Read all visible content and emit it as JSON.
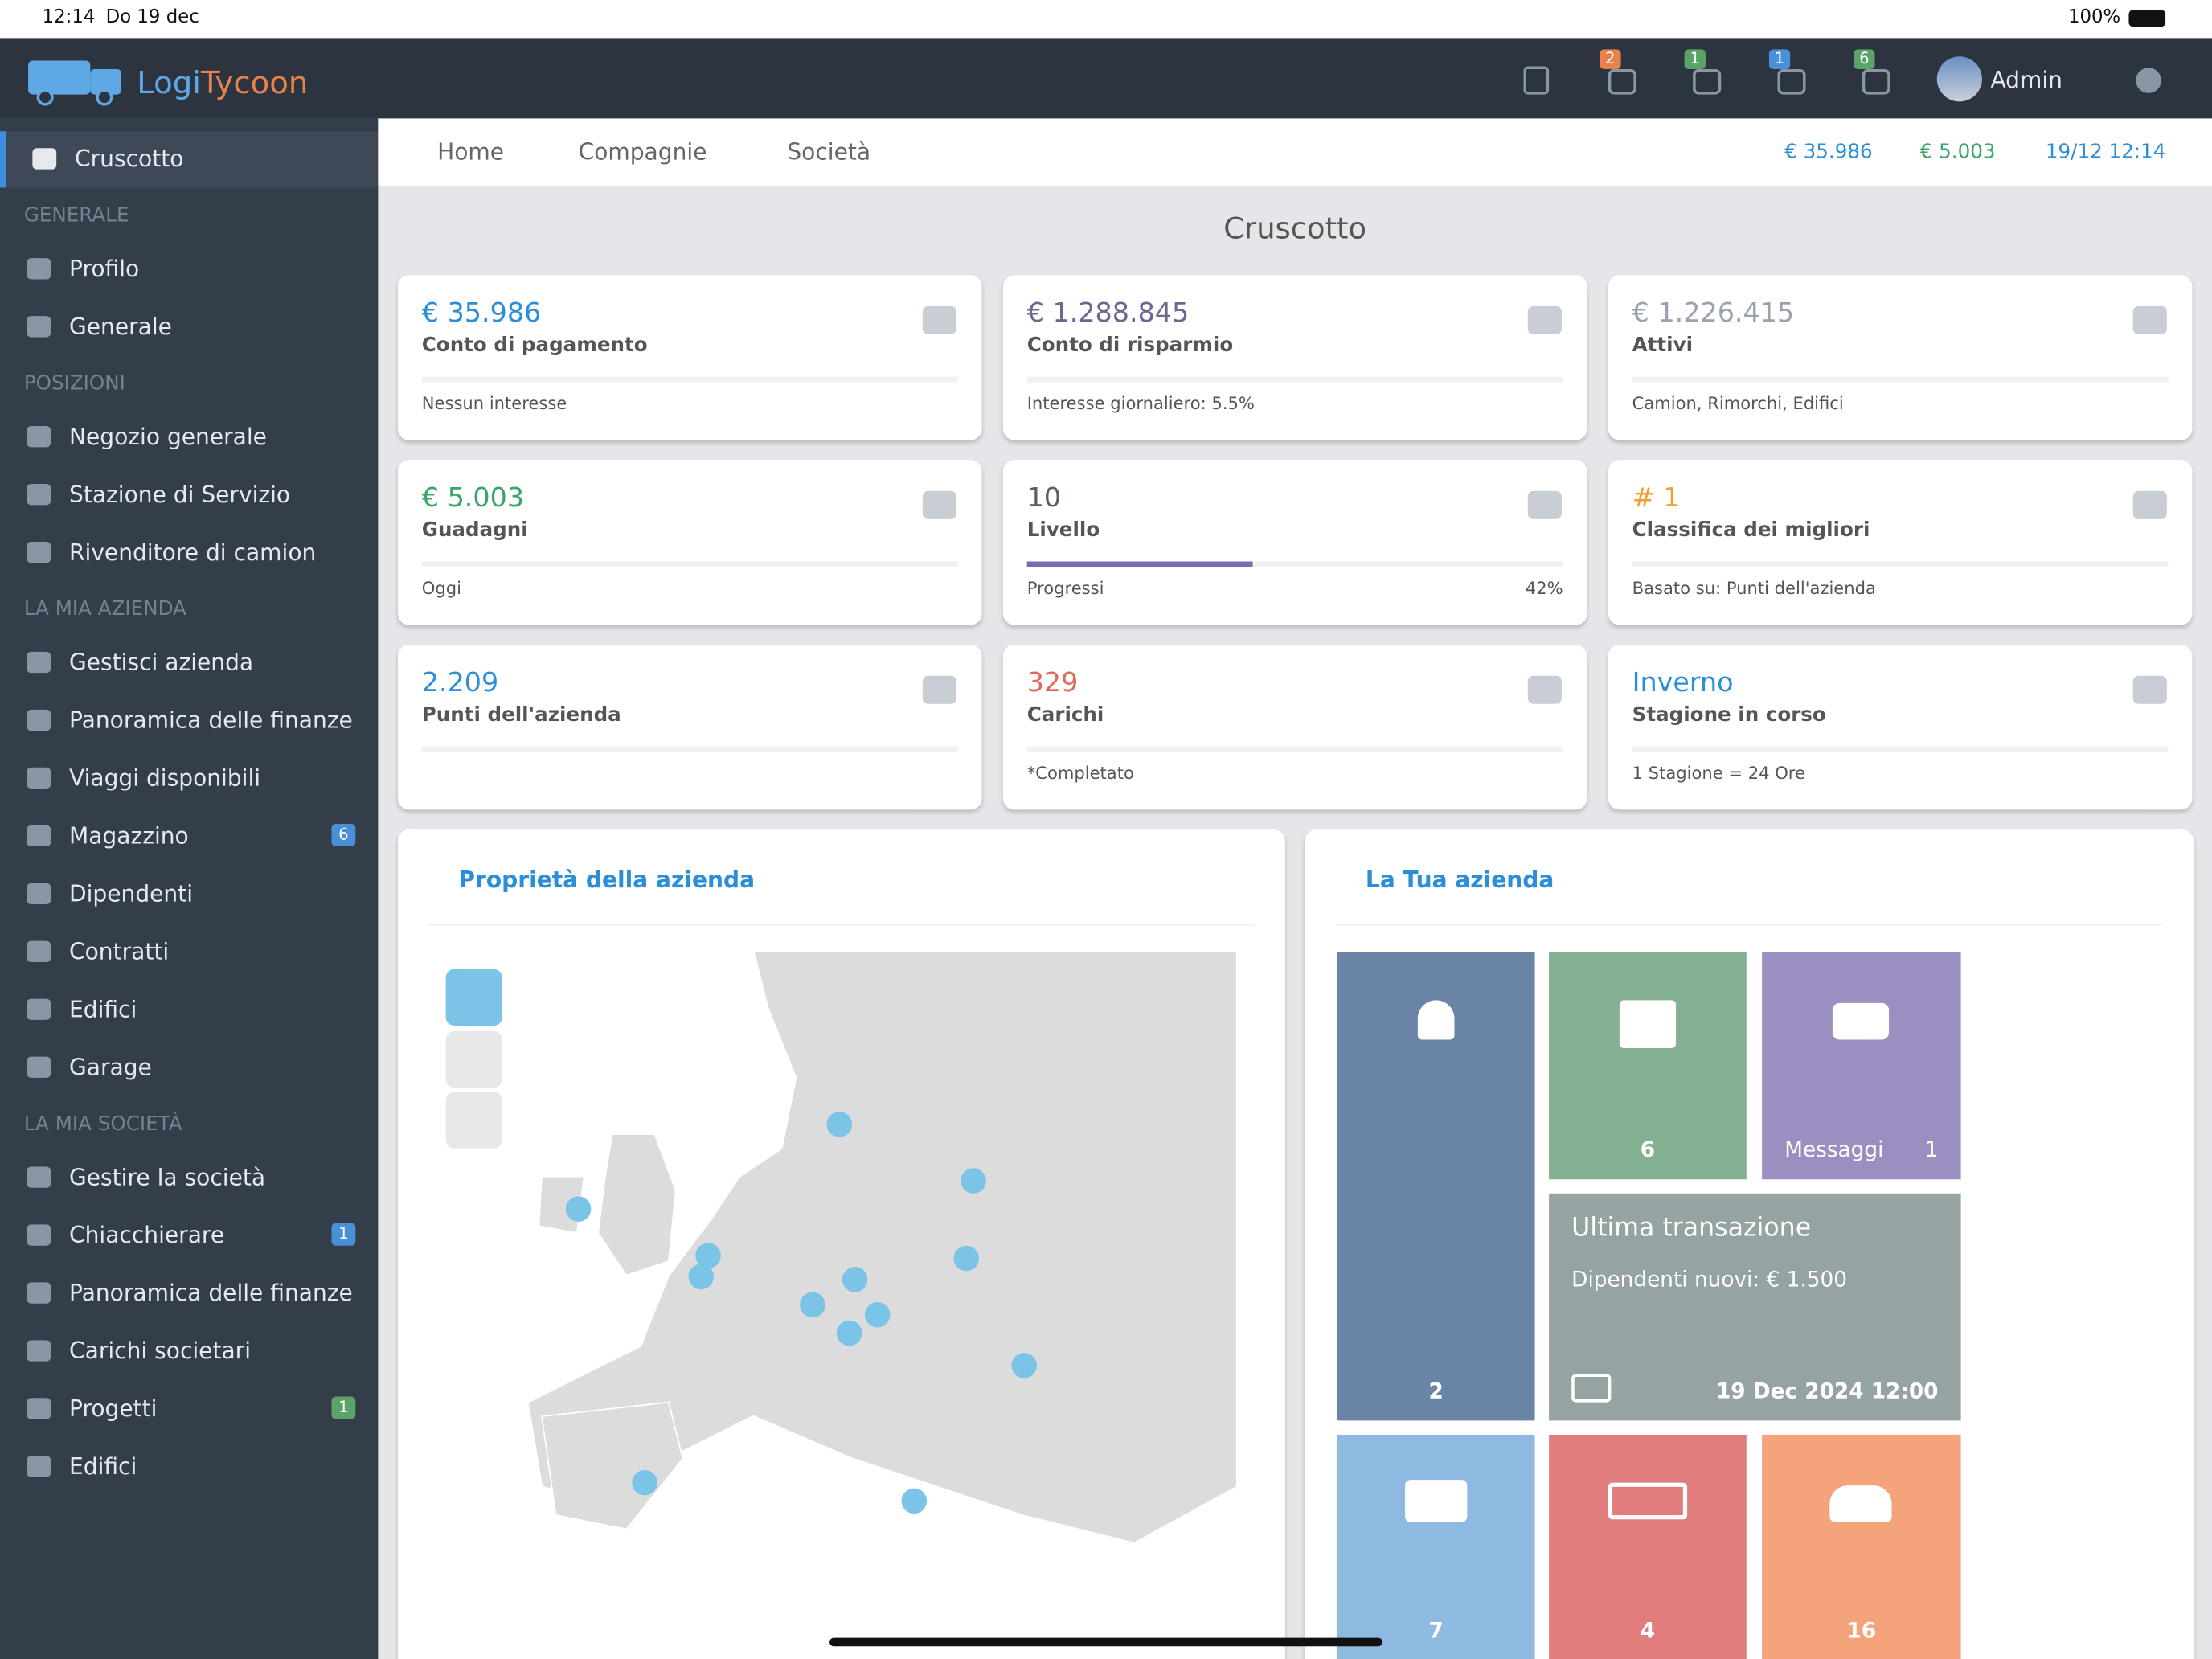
{
  "status_bar": {
    "time": "12:14",
    "date": "Do 19 dec",
    "battery": "100%"
  },
  "header": {
    "logo_a": "Logi",
    "logo_b": "Tycoon",
    "badges": [
      "2",
      "1",
      "1",
      "6"
    ],
    "user": "Admin"
  },
  "sidebar": [
    {
      "label": "Cruscotto",
      "active": true
    },
    {
      "heading": "GENERALE"
    },
    {
      "label": "Profilo"
    },
    {
      "label": "Generale"
    },
    {
      "heading": "POSIZIONI"
    },
    {
      "label": "Negozio generale"
    },
    {
      "label": "Stazione di Servizio"
    },
    {
      "label": "Rivenditore di camion"
    },
    {
      "heading": "LA MIA AZIENDA"
    },
    {
      "label": "Gestisci azienda"
    },
    {
      "label": "Panoramica delle finanze"
    },
    {
      "label": "Viaggi disponibili"
    },
    {
      "label": "Magazzino",
      "badge": "6",
      "badge_color": "#4a90d9"
    },
    {
      "label": "Dipendenti"
    },
    {
      "label": "Contratti"
    },
    {
      "label": "Edifici"
    },
    {
      "label": "Garage"
    },
    {
      "heading": "LA MIA SOCIETÀ"
    },
    {
      "label": "Gestire la società"
    },
    {
      "label": "Chiacchierare",
      "badge": "1",
      "badge_color": "#4a90d9"
    },
    {
      "label": "Panoramica delle finanze"
    },
    {
      "label": "Carichi societari"
    },
    {
      "label": "Progetti",
      "badge": "1",
      "badge_color": "#5aa469"
    },
    {
      "label": "Edifici"
    }
  ],
  "breadcrumb": [
    "Home",
    "Compagnie",
    "Società"
  ],
  "header_stats": {
    "money": "€ 35.986",
    "earnings": "€ 5.003",
    "datetime": "19/12 12:14"
  },
  "page_title": "Cruscotto",
  "cards": [
    {
      "value": "€ 35.986",
      "label": "Conto di pagamento",
      "footer": "Nessun interesse",
      "color": "#2b8ed6"
    },
    {
      "value": "€ 1.288.845",
      "label": "Conto di risparmio",
      "footer": "Interesse giornaliero: 5.5%",
      "color": "#6e6590"
    },
    {
      "value": "€ 1.226.415",
      "label": "Attivi",
      "footer": "Camion, Rimorchi, Edifici",
      "color": "#9aa3ad"
    },
    {
      "value": "€ 5.003",
      "label": "Guadagni",
      "footer": "Oggi",
      "color": "#3aa56b"
    },
    {
      "value": "10",
      "label": "Livello",
      "footer": "Progressi",
      "progress": {
        "value": 42,
        "label": "42%"
      },
      "color": "#555f6c"
    },
    {
      "value": "# 1",
      "label": "Classifica dei migliori",
      "footer": "Basato su: Punti dell'azienda",
      "color": "#f0a030"
    },
    {
      "value": "2.209",
      "label": "Punti dell'azienda",
      "color": "#2b8ed6"
    },
    {
      "value": "329",
      "label": "Carichi",
      "footer": "*Completato",
      "color": "#e06a5a"
    },
    {
      "value": "Inverno",
      "label": "Stagione in corso",
      "footer": "1 Stagione = 24 Ore",
      "color": "#2b8ed6"
    }
  ],
  "panels": {
    "properties_title": "Proprietà della azienda",
    "company_title": "La Tua azienda"
  },
  "tiles": {
    "notifications": "2",
    "warehouse": "6",
    "messages_label": "Messaggi",
    "messages": "1",
    "transaction_title": "Ultima transazione",
    "transaction_text": "Dipendenti nuovi: € 1.500",
    "transaction_date": "19 Dec 2024 12:00",
    "trucks": "7",
    "trailers": "4",
    "employees": "16"
  }
}
